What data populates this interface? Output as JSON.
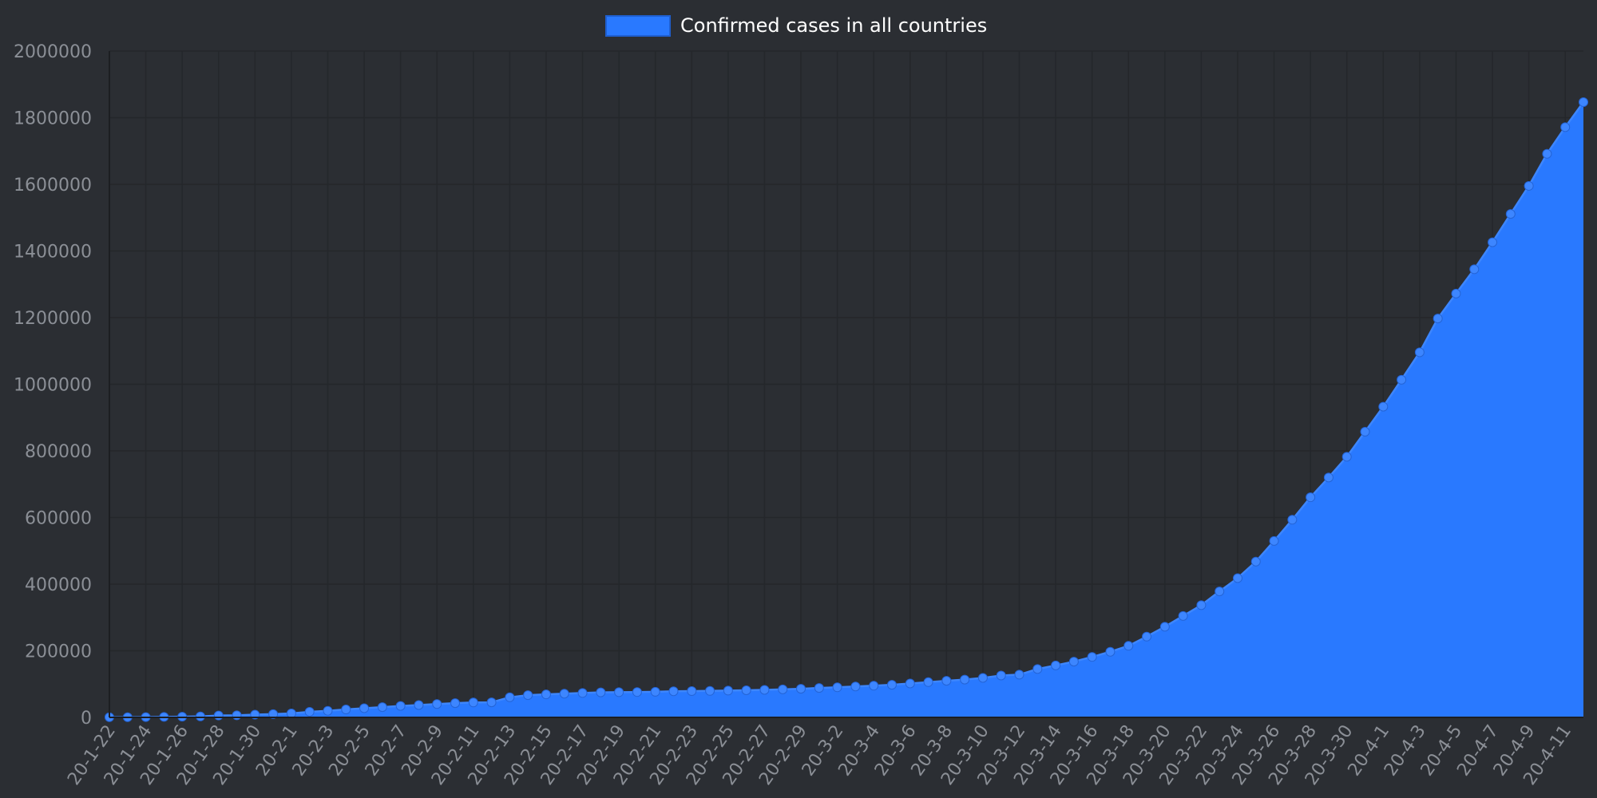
{
  "chart_data": {
    "type": "area",
    "legend": {
      "placement": "top-center",
      "label": "Confirmed cases in all countries",
      "color": "#2979ff"
    },
    "colors": {
      "background": "#2b2e33",
      "fill": "#2979ff",
      "line": "#3d86ff",
      "grid": "#24272b",
      "tick_text": "#8b8f96"
    },
    "grid": true,
    "xlabel": "",
    "ylabel": "",
    "ylim": [
      0,
      2000000
    ],
    "yticks": [
      "0",
      "200000",
      "400000",
      "600000",
      "800000",
      "1000000",
      "1200000",
      "1400000",
      "1600000",
      "1800000",
      "2000000"
    ],
    "x": [
      "20-1-22",
      "20-1-23",
      "20-1-24",
      "20-1-25",
      "20-1-26",
      "20-1-27",
      "20-1-28",
      "20-1-29",
      "20-1-30",
      "20-1-31",
      "20-2-1",
      "20-2-2",
      "20-2-3",
      "20-2-4",
      "20-2-5",
      "20-2-6",
      "20-2-7",
      "20-2-8",
      "20-2-9",
      "20-2-10",
      "20-2-11",
      "20-2-12",
      "20-2-13",
      "20-2-14",
      "20-2-15",
      "20-2-16",
      "20-2-17",
      "20-2-18",
      "20-2-19",
      "20-2-20",
      "20-2-21",
      "20-2-22",
      "20-2-23",
      "20-2-24",
      "20-2-25",
      "20-2-26",
      "20-2-27",
      "20-2-28",
      "20-2-29",
      "20-3-1",
      "20-3-2",
      "20-3-3",
      "20-3-4",
      "20-3-5",
      "20-3-6",
      "20-3-7",
      "20-3-8",
      "20-3-9",
      "20-3-10",
      "20-3-11",
      "20-3-12",
      "20-3-13",
      "20-3-14",
      "20-3-15",
      "20-3-16",
      "20-3-17",
      "20-3-18",
      "20-3-19",
      "20-3-20",
      "20-3-21",
      "20-3-22",
      "20-3-23",
      "20-3-24",
      "20-3-25",
      "20-3-26",
      "20-3-27",
      "20-3-28",
      "20-3-29",
      "20-3-30",
      "20-3-31",
      "20-4-1",
      "20-4-2",
      "20-4-3",
      "20-4-4",
      "20-4-5",
      "20-4-6",
      "20-4-7",
      "20-4-8",
      "20-4-9",
      "20-4-10",
      "20-4-11",
      "20-4-12"
    ],
    "xticks": [
      "20-1-22",
      "20-1-24",
      "20-1-26",
      "20-1-28",
      "20-1-30",
      "20-2-1",
      "20-2-3",
      "20-2-5",
      "20-2-7",
      "20-2-9",
      "20-2-11",
      "20-2-13",
      "20-2-15",
      "20-2-17",
      "20-2-19",
      "20-2-21",
      "20-2-23",
      "20-2-25",
      "20-2-27",
      "20-2-29",
      "20-3-2",
      "20-3-4",
      "20-3-6",
      "20-3-8",
      "20-3-10",
      "20-3-12",
      "20-3-14",
      "20-3-16",
      "20-3-18",
      "20-3-20",
      "20-3-22",
      "20-3-24",
      "20-3-26",
      "20-3-28",
      "20-3-30",
      "20-4-1",
      "20-4-3",
      "20-4-5",
      "20-4-7",
      "20-4-9",
      "20-4-11"
    ],
    "series": [
      {
        "name": "Confirmed cases in all countries",
        "values": [
          555,
          654,
          941,
          1434,
          2118,
          2927,
          5578,
          6166,
          8234,
          9927,
          12038,
          16787,
          19881,
          23892,
          27635,
          30794,
          34391,
          37120,
          40150,
          42762,
          44802,
          45221,
          60368,
          66885,
          69030,
          71224,
          73258,
          75136,
          75639,
          76197,
          76819,
          78572,
          78958,
          79561,
          80406,
          81388,
          82746,
          84112,
          86011,
          88369,
          90306,
          92840,
          95120,
          97886,
          101801,
          105847,
          109821,
          113590,
          118620,
          125875,
          128352,
          145205,
          156101,
          167454,
          181574,
          197102,
          214821,
          242570,
          272208,
          304507,
          336953,
          378235,
          418045,
          467653,
          529591,
          593291,
          660693,
          720140,
          782389,
          857487,
          932605,
          1013466,
          1095917,
          1197405,
          1272115,
          1345101,
          1426096,
          1511104,
          1595350,
          1691719,
          1771514,
          1846680
        ]
      }
    ]
  }
}
